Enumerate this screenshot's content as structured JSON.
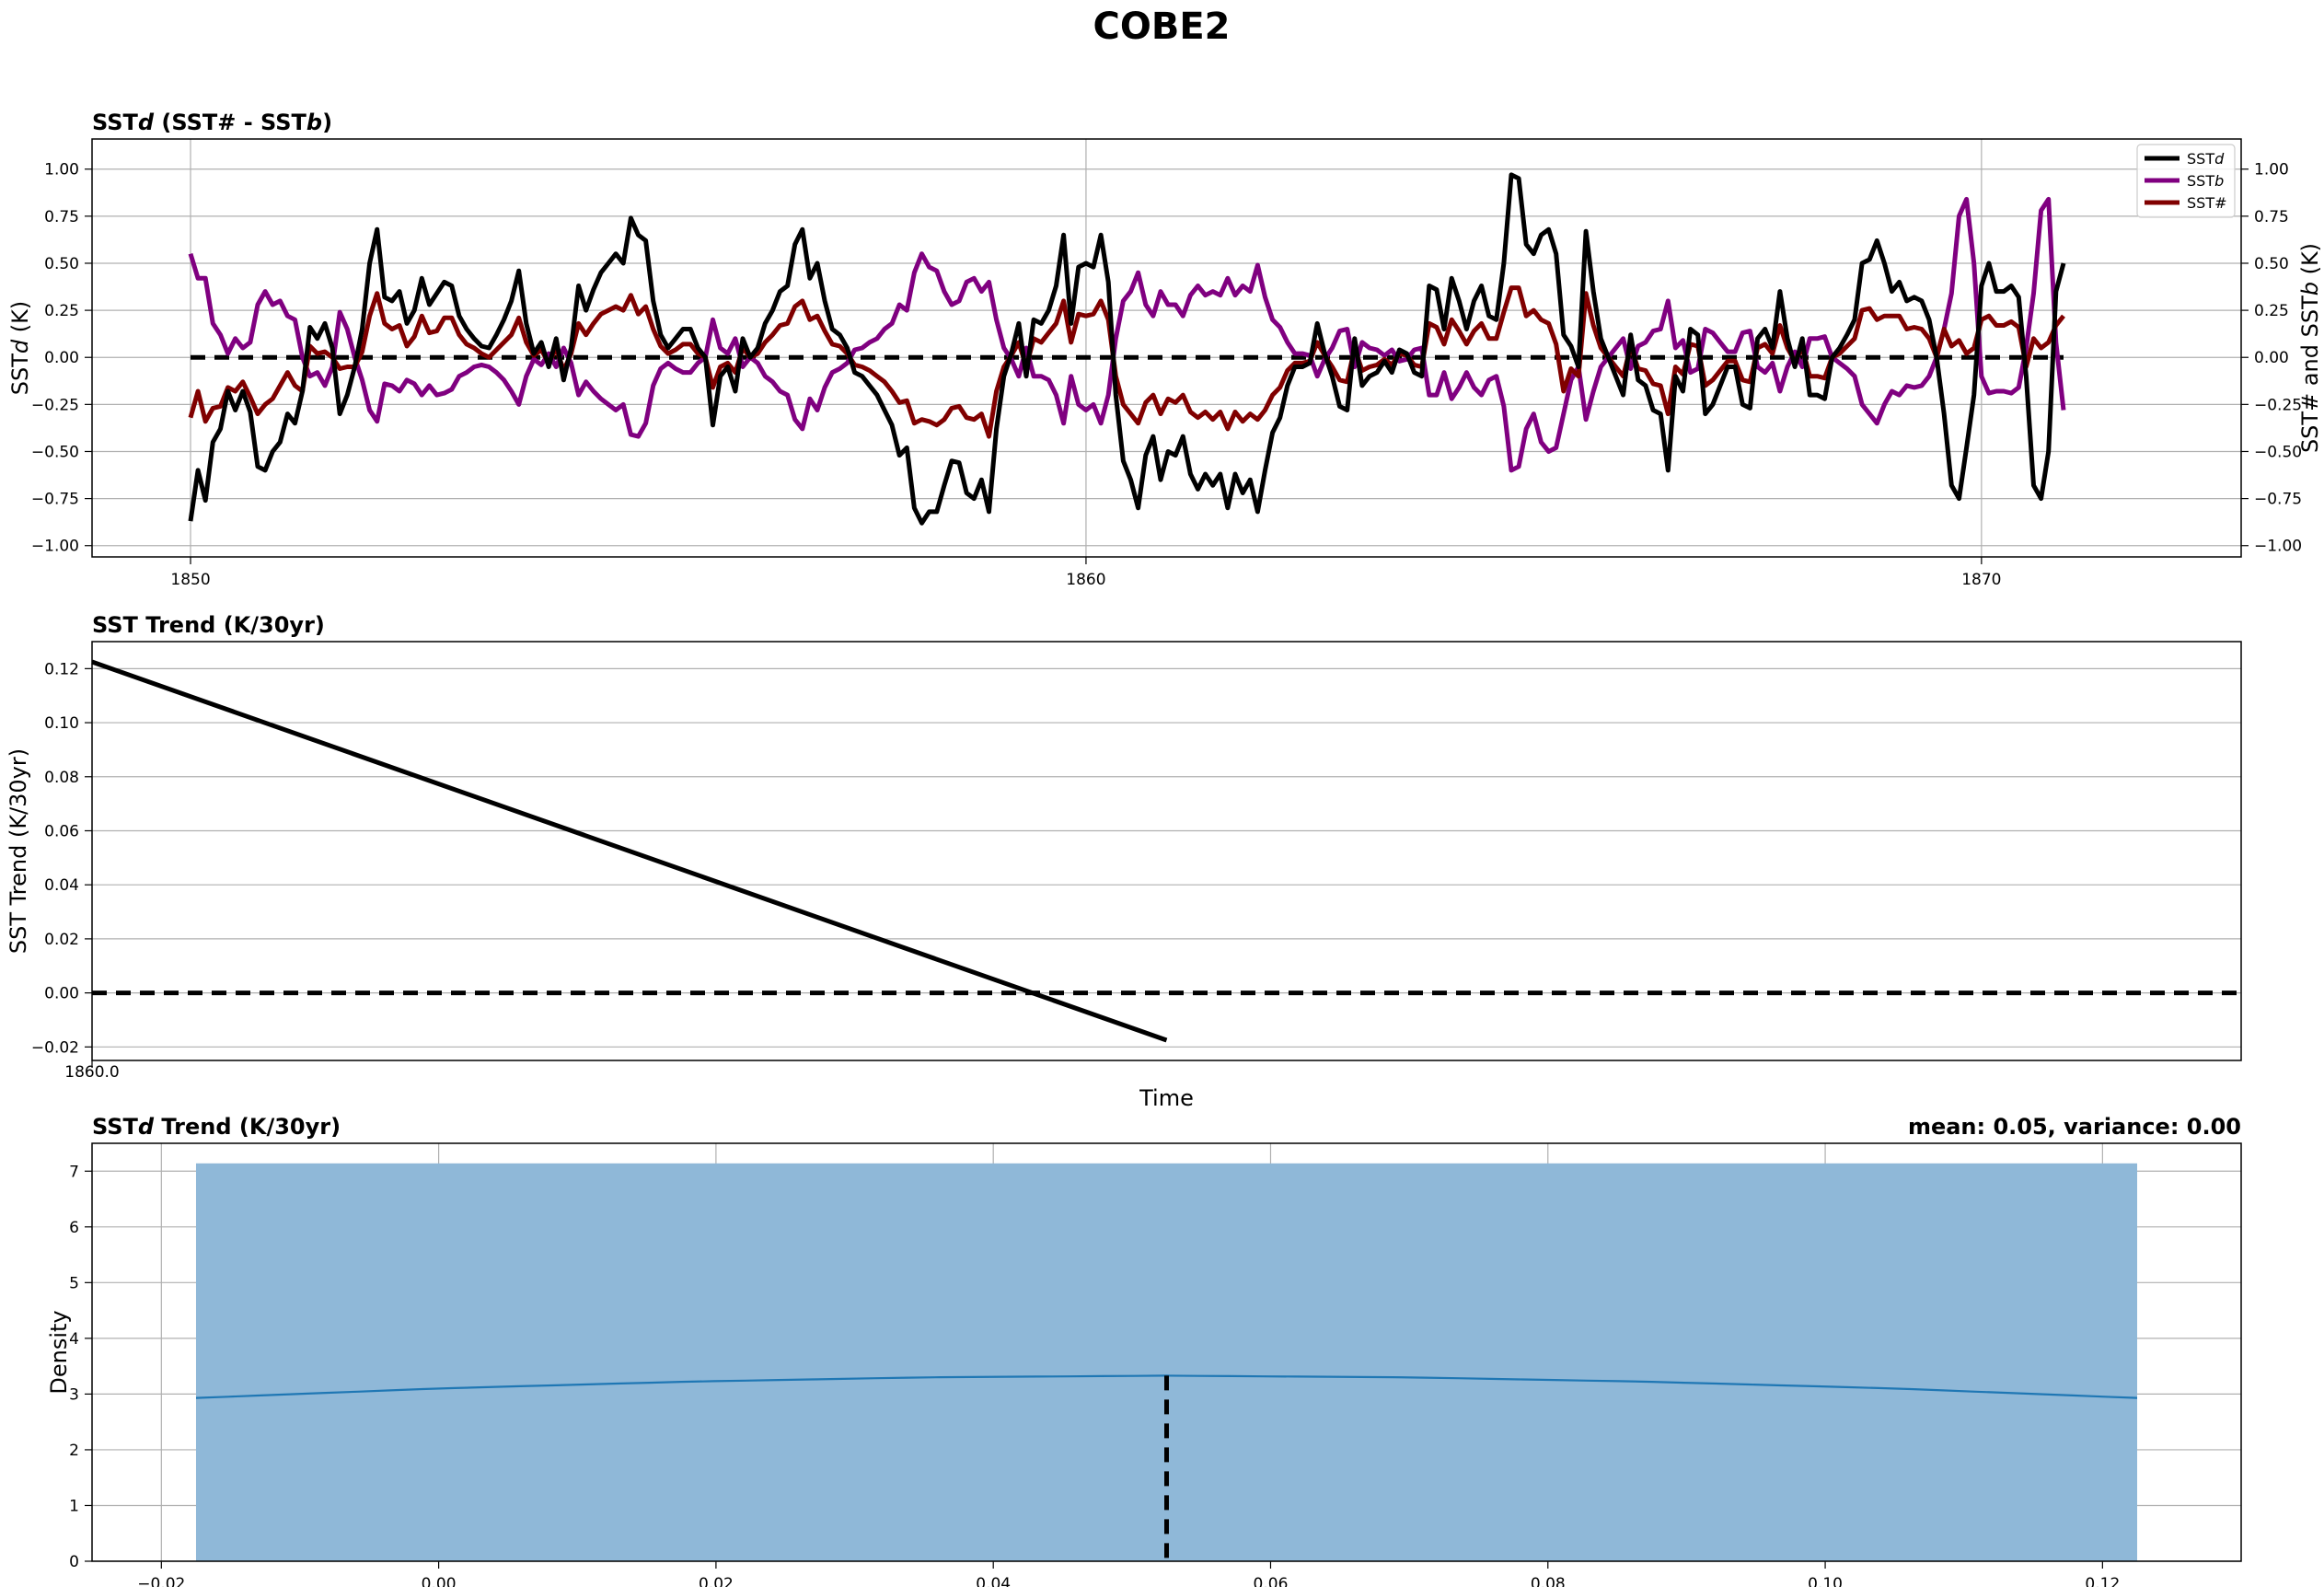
{
  "figure": {
    "title": "COBE2"
  },
  "chart_data": [
    {
      "type": "line",
      "title": "SSTd (SST# - SSTb)",
      "title_parts": [
        "SST",
        "d",
        " (SST# - SST",
        "b",
        ")"
      ],
      "xlabel": "",
      "ylabel": "SSTd (K)",
      "ylabel_parts": [
        "SST",
        "d",
        " (K)"
      ],
      "ylabel_right": "SST# and SSTb (K)",
      "ylabel_right_parts": [
        "SST# and SST",
        "b",
        " (K)"
      ],
      "xlim": [
        1848.9,
        1872.9
      ],
      "ylim": [
        -1.06,
        1.16
      ],
      "xticks": [
        1850,
        1860,
        1870
      ],
      "yticks": [
        -1.0,
        -0.75,
        -0.5,
        -0.25,
        0.0,
        0.25,
        0.5,
        0.75,
        1.0
      ],
      "ytick_labels": [
        "−1.00",
        "−0.75",
        "−0.50",
        "−0.25",
        "0.00",
        "0.25",
        "0.50",
        "0.75",
        "1.00"
      ],
      "grid": true,
      "legend_position": "top-right",
      "zero_line": 0,
      "x_start": 1850,
      "x_step": 0.08333,
      "series": [
        {
          "name": "SSTd",
          "name_parts": [
            "SST",
            "d"
          ],
          "color": "#000000",
          "values": [
            -0.87,
            -0.6,
            -0.76,
            -0.45,
            -0.38,
            -0.18,
            -0.28,
            -0.18,
            -0.29,
            -0.58,
            -0.6,
            -0.5,
            -0.45,
            -0.3,
            -0.35,
            -0.18,
            0.16,
            0.1,
            0.18,
            0.05,
            -0.3,
            -0.2,
            -0.05,
            0.15,
            0.5,
            0.68,
            0.32,
            0.3,
            0.35,
            0.18,
            0.25,
            0.42,
            0.28,
            0.34,
            0.4,
            0.38,
            0.22,
            0.15,
            0.1,
            0.06,
            0.05,
            0.12,
            0.2,
            0.3,
            0.46,
            0.18,
            0.02,
            0.08,
            -0.05,
            0.1,
            -0.12,
            0.05,
            0.38,
            0.25,
            0.36,
            0.45,
            0.5,
            0.55,
            0.5,
            0.74,
            0.65,
            0.62,
            0.3,
            0.12,
            0.05,
            0.1,
            0.15,
            0.15,
            0.05,
            0.0,
            -0.36,
            -0.1,
            -0.05,
            -0.18,
            0.1,
            0.0,
            0.05,
            0.18,
            0.25,
            0.35,
            0.38,
            0.6,
            0.68,
            0.42,
            0.5,
            0.3,
            0.15,
            0.12,
            0.05,
            -0.08,
            -0.1,
            -0.15,
            -0.2,
            -0.28,
            -0.36,
            -0.52,
            -0.48,
            -0.8,
            -0.88,
            -0.82,
            -0.82,
            -0.68,
            -0.55,
            -0.56,
            -0.72,
            -0.75,
            -0.65,
            -0.82,
            -0.38,
            -0.1,
            0.02,
            0.18,
            -0.1,
            0.2,
            0.18,
            0.25,
            0.38,
            0.65,
            0.18,
            0.48,
            0.5,
            0.48,
            0.65,
            0.4,
            -0.2,
            -0.55,
            -0.65,
            -0.8,
            -0.52,
            -0.42,
            -0.65,
            -0.5,
            -0.52,
            -0.42,
            -0.62,
            -0.7,
            -0.62,
            -0.68,
            -0.62,
            -0.8,
            -0.62,
            -0.72,
            -0.65,
            -0.82,
            -0.6,
            -0.4,
            -0.32,
            -0.15,
            -0.05,
            -0.05,
            -0.03,
            0.18,
            0.02,
            -0.1,
            -0.26,
            -0.28,
            0.1,
            -0.15,
            -0.1,
            -0.08,
            -0.02,
            -0.08,
            0.04,
            0.02,
            -0.08,
            -0.1,
            0.38,
            0.36,
            0.15,
            0.42,
            0.3,
            0.15,
            0.3,
            0.38,
            0.22,
            0.2,
            0.5,
            0.97,
            0.95,
            0.6,
            0.55,
            0.65,
            0.68,
            0.55,
            0.12,
            0.06,
            -0.05,
            0.67,
            0.35,
            0.1,
            0.0,
            -0.1,
            -0.2,
            0.12,
            -0.12,
            -0.15,
            -0.28,
            -0.3,
            -0.6,
            -0.1,
            -0.18,
            0.15,
            0.12,
            -0.3,
            -0.25,
            -0.15,
            -0.05,
            -0.05,
            -0.25,
            -0.27,
            0.1,
            0.15,
            0.05,
            0.35,
            0.1,
            -0.05,
            0.1,
            -0.2,
            -0.2,
            -0.22,
            0.0,
            0.05,
            0.12,
            0.2,
            0.5,
            0.52,
            0.62,
            0.5,
            0.35,
            0.4,
            0.3,
            0.32,
            0.3,
            0.2,
            0.0,
            -0.3,
            -0.68,
            -0.75,
            -0.48,
            -0.2,
            0.38,
            0.5,
            0.35,
            0.35,
            0.38,
            0.32,
            -0.1,
            -0.68,
            -0.75,
            -0.5,
            0.35,
            0.5
          ]
        },
        {
          "name": "SSTb",
          "name_parts": [
            "SST",
            "b"
          ],
          "color": "#800080",
          "values": [
            0.55,
            0.42,
            0.42,
            0.18,
            0.12,
            0.02,
            0.1,
            0.05,
            0.08,
            0.28,
            0.35,
            0.28,
            0.3,
            0.22,
            0.2,
            0.0,
            -0.1,
            -0.08,
            -0.15,
            -0.05,
            0.24,
            0.15,
            0.0,
            -0.12,
            -0.28,
            -0.34,
            -0.14,
            -0.15,
            -0.18,
            -0.12,
            -0.14,
            -0.2,
            -0.15,
            -0.2,
            -0.19,
            -0.17,
            -0.1,
            -0.08,
            -0.05,
            -0.04,
            -0.05,
            -0.08,
            -0.12,
            -0.18,
            -0.25,
            -0.1,
            -0.01,
            -0.04,
            0.02,
            -0.05,
            0.05,
            -0.03,
            -0.2,
            -0.13,
            -0.18,
            -0.22,
            -0.25,
            -0.28,
            -0.25,
            -0.41,
            -0.42,
            -0.35,
            -0.15,
            -0.06,
            -0.03,
            -0.06,
            -0.08,
            -0.08,
            -0.03,
            0.0,
            0.2,
            0.05,
            0.02,
            0.1,
            -0.05,
            0.0,
            -0.03,
            -0.1,
            -0.13,
            -0.18,
            -0.2,
            -0.33,
            -0.38,
            -0.22,
            -0.28,
            -0.16,
            -0.08,
            -0.06,
            -0.03,
            0.04,
            0.05,
            0.08,
            0.1,
            0.15,
            0.18,
            0.28,
            0.25,
            0.45,
            0.55,
            0.48,
            0.46,
            0.35,
            0.28,
            0.3,
            0.4,
            0.42,
            0.35,
            0.4,
            0.2,
            0.05,
            -0.01,
            -0.1,
            0.05,
            -0.1,
            -0.1,
            -0.12,
            -0.2,
            -0.35,
            -0.1,
            -0.25,
            -0.28,
            -0.25,
            -0.35,
            -0.2,
            0.1,
            0.3,
            0.35,
            0.45,
            0.28,
            0.22,
            0.35,
            0.28,
            0.28,
            0.22,
            0.33,
            0.38,
            0.33,
            0.35,
            0.33,
            0.42,
            0.33,
            0.38,
            0.35,
            0.49,
            0.32,
            0.2,
            0.16,
            0.08,
            0.02,
            0.02,
            0.01,
            -0.1,
            -0.01,
            0.05,
            0.14,
            0.15,
            -0.05,
            0.08,
            0.05,
            0.04,
            0.01,
            0.04,
            -0.02,
            -0.01,
            0.04,
            0.05,
            -0.2,
            -0.2,
            -0.08,
            -0.22,
            -0.16,
            -0.08,
            -0.16,
            -0.2,
            -0.12,
            -0.1,
            -0.26,
            -0.6,
            -0.58,
            -0.38,
            -0.3,
            -0.45,
            -0.5,
            -0.48,
            -0.3,
            -0.12,
            -0.05,
            -0.33,
            -0.18,
            -0.05,
            0.0,
            0.05,
            0.1,
            -0.06,
            0.06,
            0.08,
            0.14,
            0.15,
            0.3,
            0.05,
            0.09,
            -0.08,
            -0.06,
            0.15,
            0.13,
            0.08,
            0.03,
            0.03,
            0.13,
            0.14,
            -0.05,
            -0.08,
            -0.03,
            -0.18,
            -0.05,
            0.03,
            -0.05,
            0.1,
            0.1,
            0.11,
            0.0,
            -0.03,
            -0.06,
            -0.1,
            -0.25,
            -0.3,
            -0.35,
            -0.25,
            -0.18,
            -0.2,
            -0.15,
            -0.16,
            -0.15,
            -0.1,
            0.0,
            0.15,
            0.34,
            0.75,
            0.84,
            0.5,
            -0.1,
            -0.19,
            -0.18,
            -0.18,
            -0.19,
            -0.16,
            0.05,
            0.34,
            0.78,
            0.84,
            0.08,
            -0.28
          ]
        },
        {
          "name": "SST#",
          "name_parts": [
            "SST#"
          ],
          "color": "#800000",
          "values": [
            -0.32,
            -0.18,
            -0.34,
            -0.27,
            -0.26,
            -0.16,
            -0.18,
            -0.13,
            -0.21,
            -0.3,
            -0.25,
            -0.22,
            -0.15,
            -0.08,
            -0.15,
            -0.18,
            0.06,
            0.02,
            0.03,
            0.0,
            -0.06,
            -0.05,
            -0.05,
            0.03,
            0.22,
            0.34,
            0.18,
            0.15,
            0.17,
            0.06,
            0.11,
            0.22,
            0.13,
            0.14,
            0.21,
            0.21,
            0.12,
            0.07,
            0.05,
            0.02,
            0.0,
            0.04,
            0.08,
            0.12,
            0.21,
            0.08,
            0.01,
            0.04,
            -0.03,
            0.05,
            -0.07,
            0.02,
            0.18,
            0.12,
            0.18,
            0.23,
            0.25,
            0.27,
            0.25,
            0.33,
            0.23,
            0.27,
            0.15,
            0.06,
            0.02,
            0.04,
            0.07,
            0.07,
            0.02,
            0.0,
            -0.16,
            -0.05,
            -0.03,
            -0.08,
            0.05,
            0.0,
            0.02,
            0.08,
            0.12,
            0.17,
            0.18,
            0.27,
            0.3,
            0.2,
            0.22,
            0.14,
            0.07,
            0.06,
            0.02,
            -0.04,
            -0.05,
            -0.07,
            -0.1,
            -0.13,
            -0.18,
            -0.24,
            -0.23,
            -0.35,
            -0.33,
            -0.34,
            -0.36,
            -0.33,
            -0.27,
            -0.26,
            -0.32,
            -0.33,
            -0.3,
            -0.42,
            -0.18,
            -0.05,
            0.01,
            0.08,
            -0.05,
            0.1,
            0.08,
            0.13,
            0.18,
            0.3,
            0.08,
            0.23,
            0.22,
            0.23,
            0.3,
            0.2,
            -0.1,
            -0.25,
            -0.3,
            -0.35,
            -0.24,
            -0.2,
            -0.3,
            -0.22,
            -0.24,
            -0.2,
            -0.29,
            -0.32,
            -0.29,
            -0.33,
            -0.29,
            -0.38,
            -0.29,
            -0.34,
            -0.3,
            -0.33,
            -0.28,
            -0.2,
            -0.16,
            -0.07,
            -0.03,
            -0.03,
            -0.02,
            0.08,
            0.01,
            -0.05,
            -0.12,
            -0.13,
            0.05,
            -0.07,
            -0.05,
            -0.04,
            -0.01,
            -0.04,
            0.02,
            0.01,
            -0.04,
            -0.05,
            0.18,
            0.16,
            0.07,
            0.2,
            0.14,
            0.07,
            0.14,
            0.18,
            0.1,
            0.1,
            0.24,
            0.37,
            0.37,
            0.22,
            0.25,
            0.2,
            0.18,
            0.07,
            -0.18,
            -0.06,
            -0.1,
            0.34,
            0.17,
            0.05,
            0.0,
            -0.05,
            -0.1,
            0.06,
            -0.06,
            -0.07,
            -0.14,
            -0.15,
            -0.3,
            -0.05,
            -0.09,
            0.07,
            0.06,
            -0.15,
            -0.12,
            -0.07,
            -0.02,
            -0.02,
            -0.12,
            -0.13,
            0.05,
            0.07,
            0.02,
            0.17,
            0.05,
            -0.02,
            0.05,
            -0.1,
            -0.1,
            -0.11,
            0.0,
            0.02,
            0.06,
            0.1,
            0.25,
            0.26,
            0.2,
            0.22,
            0.22,
            0.22,
            0.15,
            0.16,
            0.15,
            0.1,
            0.0,
            0.15,
            0.06,
            0.09,
            0.02,
            0.05,
            0.2,
            0.22,
            0.17,
            0.17,
            0.19,
            0.16,
            -0.05,
            0.1,
            0.05,
            0.08,
            0.17,
            0.22
          ]
        }
      ]
    },
    {
      "type": "line",
      "title": "SST Trend (K/30yr)",
      "xlabel": "Time",
      "ylabel": "SST Trend (K/30yr)",
      "xlim": [
        1860.0,
        1863.0
      ],
      "ylim": [
        -0.025,
        0.13
      ],
      "xticks": [
        1860.0
      ],
      "xtick_labels": [
        "1860.0"
      ],
      "yticks": [
        -0.02,
        0.0,
        0.02,
        0.04,
        0.06,
        0.08,
        0.1,
        0.12
      ],
      "ytick_labels": [
        "−0.02",
        "0.00",
        "0.02",
        "0.04",
        "0.06",
        "0.08",
        "0.10",
        "0.12"
      ],
      "grid": true,
      "zero_line": 0,
      "series": [
        {
          "color": "#000000",
          "x": [
            1860.0,
            1861.5
          ],
          "values": [
            0.1225,
            -0.0175
          ]
        }
      ]
    },
    {
      "type": "area",
      "title": "SSTd Trend (K/30yr)",
      "title_parts": [
        "SST",
        "d",
        " Trend (K/30yr)"
      ],
      "title_right": "mean: 0.05, variance: 0.00",
      "ylabel": "Density",
      "xlim": [
        -0.025,
        0.13
      ],
      "ylim": [
        0,
        7.5
      ],
      "xticks": [
        -0.02,
        0.0,
        0.02,
        0.04,
        0.06,
        0.08,
        0.1,
        0.12
      ],
      "xtick_labels": [
        "−0.02",
        "0.00",
        "0.02",
        "0.04",
        "0.06",
        "0.08",
        "0.10",
        "0.12"
      ],
      "yticks": [
        0,
        1,
        2,
        3,
        4,
        5,
        6,
        7
      ],
      "grid": true,
      "histogram": {
        "bin_start": -0.0175,
        "bin_end": 0.1225,
        "density": 7.14,
        "color": "#8fb8d8"
      },
      "kde": {
        "color": "#1f77b4",
        "x": [
          -0.0175,
          0.0,
          0.0175,
          0.035,
          0.0525,
          0.07,
          0.0875,
          0.105,
          0.1225
        ],
        "values": [
          2.93,
          3.1,
          3.22,
          3.3,
          3.33,
          3.3,
          3.22,
          3.1,
          2.93
        ]
      },
      "mean": 0.0525
    }
  ]
}
